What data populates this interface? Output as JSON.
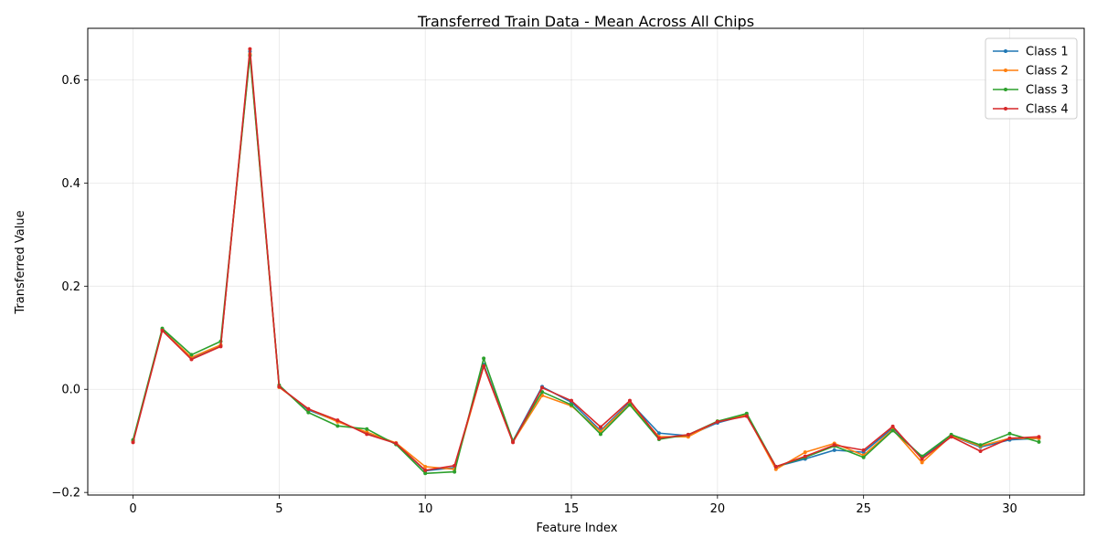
{
  "chart_data": {
    "type": "line",
    "title": "Transferred Train Data - Mean Across All Chips",
    "xlabel": "Feature Index",
    "ylabel": "Transferred Value",
    "xlim": [
      -1.55,
      32.55
    ],
    "ylim": [
      -0.205,
      0.7
    ],
    "xticks": [
      0,
      5,
      10,
      15,
      20,
      25,
      30
    ],
    "yticks": [
      -0.2,
      0.0,
      0.2,
      0.4,
      0.6
    ],
    "ytick_labels": [
      "−0.2",
      "0.0",
      "0.2",
      "0.4",
      "0.6"
    ],
    "grid": true,
    "legend_position": "top-right",
    "x": [
      0,
      1,
      2,
      3,
      4,
      5,
      6,
      7,
      8,
      9,
      10,
      11,
      12,
      13,
      14,
      15,
      16,
      17,
      18,
      19,
      20,
      21,
      22,
      23,
      24,
      25,
      26,
      27,
      28,
      29,
      30,
      31
    ],
    "series": [
      {
        "name": "Class 1",
        "color": "#1f77b4",
        "values": [
          -0.1,
          0.116,
          0.06,
          0.085,
          0.655,
          0.005,
          -0.04,
          -0.062,
          -0.085,
          -0.105,
          -0.158,
          -0.152,
          0.048,
          -0.1,
          0.005,
          -0.025,
          -0.08,
          -0.025,
          -0.085,
          -0.09,
          -0.065,
          -0.05,
          -0.15,
          -0.135,
          -0.118,
          -0.122,
          -0.075,
          -0.132,
          -0.09,
          -0.112,
          -0.098,
          -0.095
        ]
      },
      {
        "name": "Class 2",
        "color": "#ff7f0e",
        "values": [
          -0.1,
          0.114,
          0.062,
          0.086,
          0.65,
          0.004,
          -0.038,
          -0.063,
          -0.083,
          -0.104,
          -0.15,
          -0.155,
          0.045,
          -0.102,
          -0.012,
          -0.032,
          -0.082,
          -0.028,
          -0.092,
          -0.092,
          -0.062,
          -0.05,
          -0.155,
          -0.122,
          -0.105,
          -0.128,
          -0.078,
          -0.142,
          -0.09,
          -0.11,
          -0.095,
          -0.095
        ]
      },
      {
        "name": "Class 3",
        "color": "#2ca02c",
        "values": [
          -0.098,
          0.118,
          0.067,
          0.093,
          0.647,
          0.008,
          -0.045,
          -0.071,
          -0.077,
          -0.107,
          -0.163,
          -0.16,
          0.06,
          -0.1,
          -0.005,
          -0.03,
          -0.087,
          -0.03,
          -0.097,
          -0.088,
          -0.062,
          -0.047,
          -0.15,
          -0.132,
          -0.11,
          -0.132,
          -0.08,
          -0.13,
          -0.088,
          -0.108,
          -0.086,
          -0.102
        ]
      },
      {
        "name": "Class 4",
        "color": "#d62728",
        "values": [
          -0.103,
          0.114,
          0.058,
          0.083,
          0.66,
          0.005,
          -0.038,
          -0.06,
          -0.087,
          -0.105,
          -0.157,
          -0.148,
          0.045,
          -0.103,
          0.003,
          -0.022,
          -0.073,
          -0.022,
          -0.095,
          -0.088,
          -0.063,
          -0.052,
          -0.15,
          -0.13,
          -0.108,
          -0.118,
          -0.072,
          -0.135,
          -0.092,
          -0.12,
          -0.095,
          -0.092
        ]
      }
    ]
  }
}
